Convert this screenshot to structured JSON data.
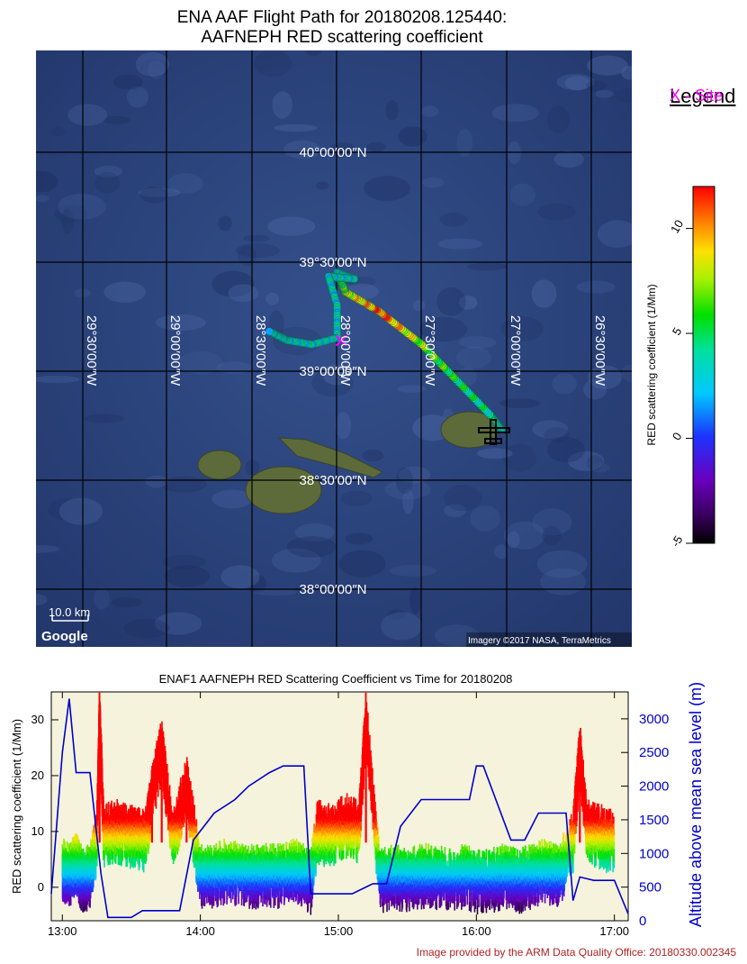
{
  "title": {
    "line1": "ENA AAF Flight Path for 20180208.125440:",
    "line2": "AAFNEPH RED scattering coefficient"
  },
  "legend": {
    "title": "Legend",
    "site_label": "X - Site",
    "site_color": "#ff00ff"
  },
  "map": {
    "lat_labels": [
      "40°00′00″N",
      "39°30′00″N",
      "39°00′00″N",
      "38°30′00″N",
      "38°00′00″N"
    ],
    "lon_labels": [
      "29°30′00″W",
      "29°00′00″W",
      "28°30′00″W",
      "28°00′00″W",
      "27°30′00″W",
      "27°00′00″W",
      "26°30′00″W"
    ],
    "scale_label": "10.0 km",
    "google_label": "Google",
    "attribution": "Imagery ©2017 NASA, TerraMetrics",
    "ocean_color": "#2a3f78",
    "island_color": "#5d6a3a",
    "flight_path": [
      {
        "lon": -27.03,
        "lat": 38.73,
        "v": 3
      },
      {
        "lon": -27.1,
        "lat": 38.8,
        "v": 4
      },
      {
        "lon": -27.3,
        "lat": 38.96,
        "v": 5
      },
      {
        "lon": -27.5,
        "lat": 39.12,
        "v": 7
      },
      {
        "lon": -27.75,
        "lat": 39.27,
        "v": 11
      },
      {
        "lon": -27.95,
        "lat": 39.36,
        "v": 8
      },
      {
        "lon": -28.0,
        "lat": 39.45,
        "v": 3
      },
      {
        "lon": -27.9,
        "lat": 39.42,
        "v": 3
      },
      {
        "lon": -28.05,
        "lat": 39.43,
        "v": 3
      },
      {
        "lon": -28.0,
        "lat": 39.3,
        "v": 3
      },
      {
        "lon": -28.0,
        "lat": 39.15,
        "v": 3
      },
      {
        "lon": -28.15,
        "lat": 39.12,
        "v": 3
      },
      {
        "lon": -28.3,
        "lat": 39.14,
        "v": 3
      },
      {
        "lon": -28.4,
        "lat": 39.18,
        "v": 3
      }
    ]
  },
  "colorbar": {
    "label": "RED scattering coefficient  (1/Mm)",
    "ticks": [
      "10",
      "5",
      "0",
      "-5"
    ],
    "min": -5,
    "max": 12
  },
  "chart_data": {
    "type": "line",
    "title": "ENAF1 AAFNEPH RED Scattering Coefficient vs Time for 20180208",
    "ylabel": "RED scattering coefficient (1/Mm)",
    "y2label": "Altitude above mean sea level (m)",
    "x_ticks": [
      "13:00",
      "14:00",
      "15:00",
      "16:00",
      "17:00"
    ],
    "y_ticks": [
      "30",
      "20",
      "10",
      "0"
    ],
    "y2_ticks": [
      "3000",
      "2500",
      "2000",
      "1500",
      "1000",
      "500",
      "0"
    ],
    "xlim_hours": [
      12.92,
      17.1
    ],
    "ylim": [
      -6,
      35
    ],
    "y2lim": [
      0,
      3400
    ],
    "background": "#f5f3dc",
    "series": [
      {
        "name": "Altitude above mean sea level (m)",
        "color": "#0000cc",
        "x": [
          12.92,
          13.0,
          13.05,
          13.1,
          13.14,
          13.2,
          13.28,
          13.33,
          13.5,
          13.58,
          13.65,
          13.75,
          13.85,
          13.95,
          14.1,
          14.25,
          14.35,
          14.5,
          14.6,
          14.75,
          14.8,
          14.9,
          15.1,
          15.2,
          15.25,
          15.35,
          15.45,
          15.6,
          15.7,
          15.8,
          15.95,
          16.0,
          16.05,
          16.25,
          16.35,
          16.45,
          16.65,
          16.7,
          16.75,
          16.85,
          17.0,
          17.1
        ],
        "y": [
          400,
          2500,
          3300,
          2200,
          2200,
          2200,
          700,
          50,
          50,
          150,
          150,
          150,
          150,
          1200,
          1600,
          1800,
          2000,
          2200,
          2300,
          2300,
          400,
          400,
          400,
          500,
          550,
          550,
          1400,
          1800,
          1800,
          1800,
          1800,
          2300,
          2300,
          1200,
          1200,
          1600,
          1600,
          300,
          650,
          600,
          600,
          100
        ]
      },
      {
        "name": "RED scattering coefficient (1/Mm)",
        "x": [
          13.0,
          13.05,
          13.1,
          13.15,
          13.2,
          13.25,
          13.27,
          13.3,
          13.4,
          13.5,
          13.6,
          13.65,
          13.72,
          13.8,
          13.9,
          14.0,
          14.1,
          14.2,
          14.3,
          14.4,
          14.5,
          14.6,
          14.7,
          14.8,
          14.85,
          14.95,
          15.05,
          15.15,
          15.2,
          15.3,
          15.4,
          15.5,
          15.6,
          15.7,
          15.8,
          15.9,
          16.0,
          16.1,
          16.2,
          16.3,
          16.4,
          16.5,
          16.6,
          16.7,
          16.75,
          16.8,
          16.9,
          17.0
        ],
        "y": [
          5,
          4,
          6,
          3,
          4,
          10,
          33,
          11,
          12,
          11,
          10,
          18,
          27,
          10,
          20,
          4,
          4,
          5,
          4,
          4,
          4,
          4,
          5,
          3,
          12,
          11,
          13,
          12,
          32,
          3,
          4,
          3,
          4,
          4,
          3,
          4,
          3,
          3,
          4,
          3,
          4,
          5,
          4,
          10,
          26,
          12,
          11,
          10
        ]
      }
    ]
  },
  "credit": "Image provided by the ARM Data Quality Office: 20180330.002345"
}
